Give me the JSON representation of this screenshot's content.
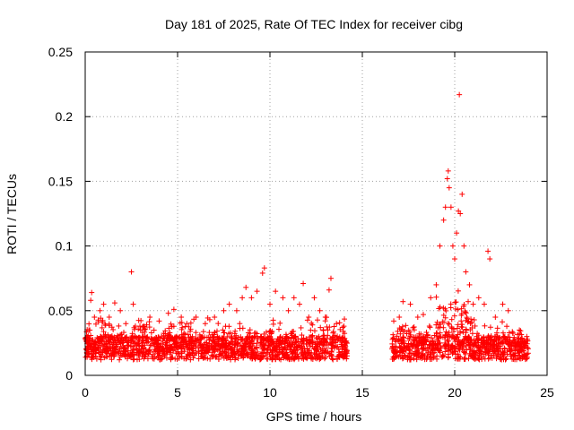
{
  "chart_data": {
    "type": "scatter",
    "title": "Day 181 of 2025, Rate Of TEC Index for receiver cibg",
    "xlabel": "GPS time / hours",
    "ylabel": "ROTI / TECUs",
    "xlim": [
      0,
      25
    ],
    "ylim": [
      0,
      0.25
    ],
    "x_ticks": [
      0,
      5,
      10,
      15,
      20,
      25
    ],
    "x_tick_labels": [
      "0",
      "5",
      "10",
      "15",
      "20",
      "25"
    ],
    "y_ticks": [
      0,
      0.05,
      0.1,
      0.15,
      0.2,
      0.25
    ],
    "y_tick_labels": [
      "0",
      "0.05",
      "0.1",
      "0.15",
      "0.2",
      "0.25"
    ],
    "grid": true,
    "marker": "plus",
    "color": "#ff0000",
    "data_gap_hours": [
      14.2,
      16.6
    ],
    "series": [
      {
        "name": "ROTI",
        "points": [
          [
            0.1,
            0.015
          ],
          [
            0.2,
            0.035
          ],
          [
            0.3,
            0.058
          ],
          [
            0.35,
            0.064
          ],
          [
            0.5,
            0.045
          ],
          [
            0.8,
            0.05
          ],
          [
            1.0,
            0.055
          ],
          [
            1.3,
            0.045
          ],
          [
            1.6,
            0.056
          ],
          [
            1.9,
            0.05
          ],
          [
            2.2,
            0.04
          ],
          [
            2.5,
            0.08
          ],
          [
            2.6,
            0.055
          ],
          [
            3.0,
            0.035
          ],
          [
            3.5,
            0.045
          ],
          [
            4.0,
            0.042
          ],
          [
            4.5,
            0.048
          ],
          [
            4.8,
            0.051
          ],
          [
            5.2,
            0.045
          ],
          [
            5.5,
            0.04
          ],
          [
            6.0,
            0.045
          ],
          [
            6.5,
            0.04
          ],
          [
            7.0,
            0.045
          ],
          [
            7.5,
            0.05
          ],
          [
            7.8,
            0.055
          ],
          [
            8.2,
            0.05
          ],
          [
            8.5,
            0.06
          ],
          [
            8.7,
            0.068
          ],
          [
            9.0,
            0.06
          ],
          [
            9.3,
            0.065
          ],
          [
            9.6,
            0.079
          ],
          [
            9.7,
            0.083
          ],
          [
            10.0,
            0.055
          ],
          [
            10.3,
            0.065
          ],
          [
            10.7,
            0.06
          ],
          [
            11.0,
            0.05
          ],
          [
            11.3,
            0.06
          ],
          [
            11.6,
            0.055
          ],
          [
            11.8,
            0.071
          ],
          [
            12.1,
            0.045
          ],
          [
            12.4,
            0.06
          ],
          [
            12.7,
            0.05
          ],
          [
            13.0,
            0.045
          ],
          [
            13.2,
            0.066
          ],
          [
            13.3,
            0.075
          ],
          [
            13.6,
            0.04
          ],
          [
            14.0,
            0.038
          ],
          [
            16.7,
            0.042
          ],
          [
            17.0,
            0.045
          ],
          [
            17.2,
            0.057
          ],
          [
            17.6,
            0.055
          ],
          [
            18.0,
            0.045
          ],
          [
            18.3,
            0.047
          ],
          [
            18.7,
            0.06
          ],
          [
            19.0,
            0.07
          ],
          [
            19.2,
            0.1
          ],
          [
            19.4,
            0.12
          ],
          [
            19.5,
            0.13
          ],
          [
            19.6,
            0.152
          ],
          [
            19.65,
            0.158
          ],
          [
            19.7,
            0.145
          ],
          [
            19.8,
            0.13
          ],
          [
            19.9,
            0.1
          ],
          [
            20.0,
            0.09
          ],
          [
            20.1,
            0.11
          ],
          [
            20.2,
            0.127
          ],
          [
            20.25,
            0.217
          ],
          [
            20.3,
            0.125
          ],
          [
            20.4,
            0.14
          ],
          [
            20.5,
            0.1
          ],
          [
            20.6,
            0.08
          ],
          [
            20.8,
            0.07
          ],
          [
            21.0,
            0.055
          ],
          [
            21.3,
            0.06
          ],
          [
            21.6,
            0.055
          ],
          [
            21.8,
            0.096
          ],
          [
            21.9,
            0.09
          ],
          [
            22.2,
            0.045
          ],
          [
            22.6,
            0.055
          ],
          [
            22.9,
            0.05
          ],
          [
            23.5,
            0.035
          ],
          [
            23.9,
            0.03
          ]
        ]
      }
    ]
  }
}
